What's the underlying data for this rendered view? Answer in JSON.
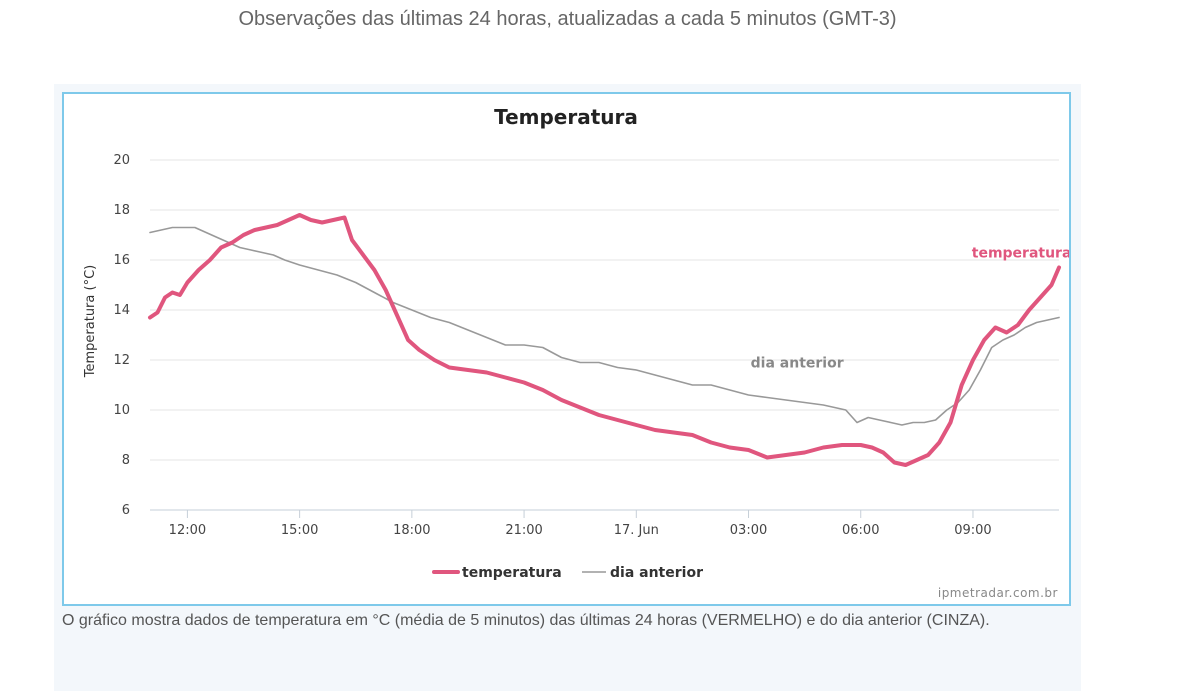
{
  "page": {
    "header": "Observações das últimas 24 horas, atualizadas a cada 5 minutos (GMT-3)",
    "caption": "O gráfico mostra dados de temperatura em °C (média de 5 minutos) das últimas 24 horas (VERMELHO) e do dia anterior (CINZA).",
    "credit": "ipmetradar.com.br"
  },
  "chart_data": {
    "type": "line",
    "title": "Temperatura",
    "xlabel": "",
    "ylabel": "Temperatura (°C)",
    "ylim": [
      6,
      20
    ],
    "yticks": [
      6,
      8,
      10,
      12,
      14,
      16,
      18,
      20
    ],
    "xlim": [
      11.0,
      35.3
    ],
    "xticks": [
      {
        "value": 12,
        "label": "12:00"
      },
      {
        "value": 15,
        "label": "15:00"
      },
      {
        "value": 18,
        "label": "18:00"
      },
      {
        "value": 21,
        "label": "21:00"
      },
      {
        "value": 24,
        "label": "17. Jun"
      },
      {
        "value": 27,
        "label": "03:00"
      },
      {
        "value": 30,
        "label": "06:00"
      },
      {
        "value": 33,
        "label": "09:00"
      }
    ],
    "grid": true,
    "legend": "bottom-center",
    "series": [
      {
        "name": "temperatura",
        "color": "#e0567e",
        "x": [
          11.0,
          11.2,
          11.4,
          11.6,
          11.8,
          12.0,
          12.3,
          12.6,
          12.9,
          13.2,
          13.5,
          13.8,
          14.1,
          14.4,
          14.7,
          15.0,
          15.3,
          15.6,
          15.9,
          16.2,
          16.4,
          16.7,
          17.0,
          17.3,
          17.6,
          17.9,
          18.2,
          18.6,
          19.0,
          19.5,
          20.0,
          20.5,
          21.0,
          21.5,
          22.0,
          22.5,
          23.0,
          23.5,
          24.0,
          24.5,
          25.0,
          25.5,
          26.0,
          26.5,
          27.0,
          27.5,
          28.0,
          28.5,
          29.0,
          29.5,
          30.0,
          30.3,
          30.6,
          30.9,
          31.2,
          31.5,
          31.8,
          32.1,
          32.4,
          32.7,
          33.0,
          33.3,
          33.6,
          33.9,
          34.2,
          34.5,
          34.8,
          35.1,
          35.3
        ],
        "values": [
          13.7,
          13.9,
          14.5,
          14.7,
          14.6,
          15.1,
          15.6,
          16.0,
          16.5,
          16.7,
          17.0,
          17.2,
          17.3,
          17.4,
          17.6,
          17.8,
          17.6,
          17.5,
          17.6,
          17.7,
          16.8,
          16.2,
          15.6,
          14.8,
          13.8,
          12.8,
          12.4,
          12.0,
          11.7,
          11.6,
          11.5,
          11.3,
          11.1,
          10.8,
          10.4,
          10.1,
          9.8,
          9.6,
          9.4,
          9.2,
          9.1,
          9.0,
          8.7,
          8.5,
          8.4,
          8.1,
          8.2,
          8.3,
          8.5,
          8.6,
          8.6,
          8.5,
          8.3,
          7.9,
          7.8,
          8.0,
          8.2,
          8.7,
          9.5,
          11.0,
          12.0,
          12.8,
          13.3,
          13.1,
          13.4,
          14.0,
          14.5,
          15.0,
          15.7
        ]
      },
      {
        "name": "dia anterior",
        "color": "#999999",
        "x": [
          11.0,
          11.3,
          11.6,
          11.9,
          12.2,
          12.5,
          12.8,
          13.1,
          13.4,
          13.7,
          14.0,
          14.3,
          14.6,
          15.0,
          15.5,
          16.0,
          16.5,
          17.0,
          17.5,
          18.0,
          18.5,
          19.0,
          19.5,
          20.0,
          20.5,
          21.0,
          21.5,
          22.0,
          22.5,
          23.0,
          23.5,
          24.0,
          24.5,
          25.0,
          25.5,
          26.0,
          26.5,
          27.0,
          27.5,
          28.0,
          28.5,
          29.0,
          29.3,
          29.6,
          29.9,
          30.2,
          30.5,
          30.8,
          31.1,
          31.4,
          31.7,
          32.0,
          32.3,
          32.6,
          32.9,
          33.2,
          33.5,
          33.8,
          34.1,
          34.4,
          34.7,
          35.0,
          35.3
        ],
        "values": [
          17.1,
          17.2,
          17.3,
          17.3,
          17.3,
          17.1,
          16.9,
          16.7,
          16.5,
          16.4,
          16.3,
          16.2,
          16.0,
          15.8,
          15.6,
          15.4,
          15.1,
          14.7,
          14.3,
          14.0,
          13.7,
          13.5,
          13.2,
          12.9,
          12.6,
          12.6,
          12.5,
          12.1,
          11.9,
          11.9,
          11.7,
          11.6,
          11.4,
          11.2,
          11.0,
          11.0,
          10.8,
          10.6,
          10.5,
          10.4,
          10.3,
          10.2,
          10.1,
          10.0,
          9.5,
          9.7,
          9.6,
          9.5,
          9.4,
          9.5,
          9.5,
          9.6,
          10.0,
          10.3,
          10.8,
          11.6,
          12.5,
          12.8,
          13.0,
          13.3,
          13.5,
          13.6,
          13.7
        ]
      }
    ],
    "annotations": [
      {
        "text": "temperatura",
        "series": 0,
        "x": 34.3,
        "y": 16.1
      },
      {
        "text": "dia anterior",
        "series": 1,
        "x": 28.3,
        "y": 11.7
      }
    ]
  }
}
